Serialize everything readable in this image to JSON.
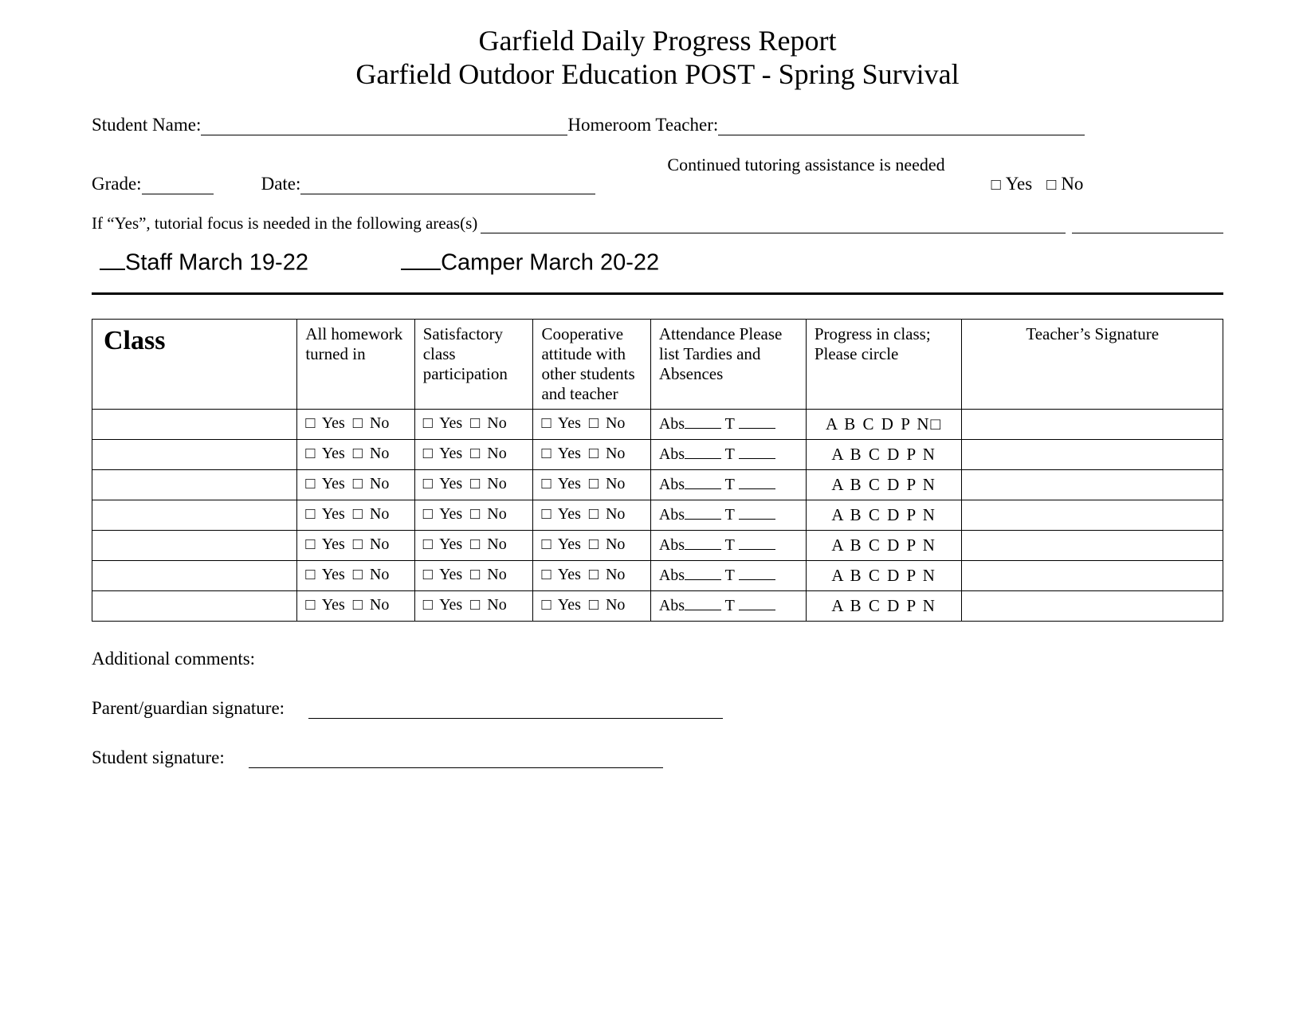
{
  "title": {
    "line1": "Garfield Daily Progress Report",
    "line2": "Garfield Outdoor Education POST - Spring Survival"
  },
  "fields": {
    "student_name_label": "Student Name:",
    "homeroom_label": "Homeroom Teacher:",
    "grade_label": "Grade:",
    "date_label": "Date:",
    "tutoring_label": "Continued tutoring assistance is needed",
    "yes": "Yes",
    "no": "No",
    "areas_label": "If “Yes”, tutorial focus is needed in the following areas(s)"
  },
  "checkin": {
    "staff": "Staff  March 19-22",
    "camper": "Camper  March 20-22"
  },
  "table": {
    "headers": {
      "class": "Class",
      "homework": "All homework turned in",
      "participation": "Satisfactory class participation",
      "cooperative": "Cooperative attitude with other students and teacher",
      "attendance": "Attendance Please list Tardies and Absences",
      "progress": "Progress in class;\nPlease circle",
      "progress_line1": "Progress in class;",
      "progress_line2": "Please circle",
      "signature": "Teacher’s Signature"
    },
    "cell": {
      "yes": "Yes",
      "no": "No",
      "abs": "Abs",
      "t": "T",
      "progress_letters": "A B C D P N",
      "progress_letters_box": "A B C D P N□"
    },
    "row_count": 7
  },
  "footer": {
    "comments": "Additional comments:",
    "parent_sig": "Parent/guardian signature:",
    "student_sig": "Student signature:"
  },
  "style": {
    "text_color": "#000000",
    "background": "#ffffff",
    "title_fontsize": 36,
    "body_fontsize": 23,
    "checkin_fontsize": 29,
    "table_fontsize": 21,
    "border_color": "#000000"
  }
}
